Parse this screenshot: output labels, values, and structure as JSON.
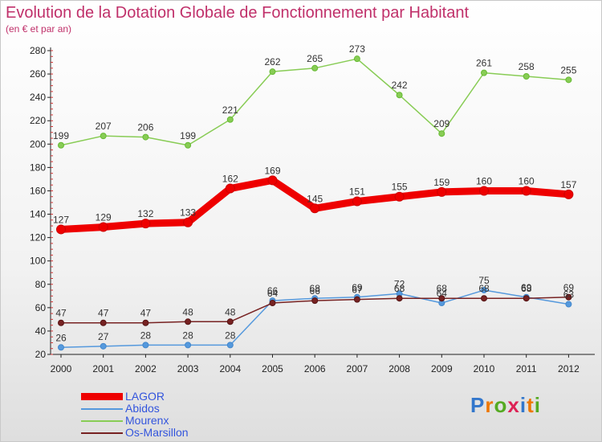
{
  "header": {
    "title": "Evolution de la Dotation Globale de Fonctionnement par Habitant",
    "subtitle": "(en € et par an)"
  },
  "logo": {
    "text": "Proxiti"
  },
  "chart_data": {
    "type": "line",
    "title": "Evolution de la Dotation Globale de Fonctionnement par Habitant",
    "subtitle": "(en € et par an)",
    "x": [
      "2000",
      "2001",
      "2002",
      "2003",
      "2004",
      "2005",
      "2006",
      "2007",
      "2008",
      "2009",
      "2010",
      "2011",
      "2012"
    ],
    "ylim": [
      20,
      280
    ],
    "yticks": [
      20,
      40,
      60,
      80,
      100,
      120,
      140,
      160,
      180,
      200,
      220,
      240,
      260,
      280
    ],
    "grid": false,
    "legend_position": "bottom-left",
    "series": [
      {
        "name": "LAGOR",
        "color": "#ee0000",
        "values": [
          127,
          129,
          132,
          133,
          162,
          169,
          145,
          151,
          155,
          159,
          160,
          160,
          157
        ]
      },
      {
        "name": "Abidos",
        "color": "#5599dd",
        "values": [
          26,
          27,
          28,
          28,
          28,
          66,
          68,
          69,
          72,
          64,
          75,
          69,
          63
        ]
      },
      {
        "name": "Mourenx",
        "color": "#88cc55",
        "values": [
          199,
          207,
          206,
          199,
          221,
          262,
          265,
          273,
          242,
          209,
          261,
          258,
          255
        ]
      },
      {
        "name": "Os-Marsillon",
        "color": "#772222",
        "values": [
          47,
          47,
          47,
          48,
          48,
          64,
          66,
          67,
          68,
          68,
          68,
          68,
          69
        ]
      }
    ]
  }
}
